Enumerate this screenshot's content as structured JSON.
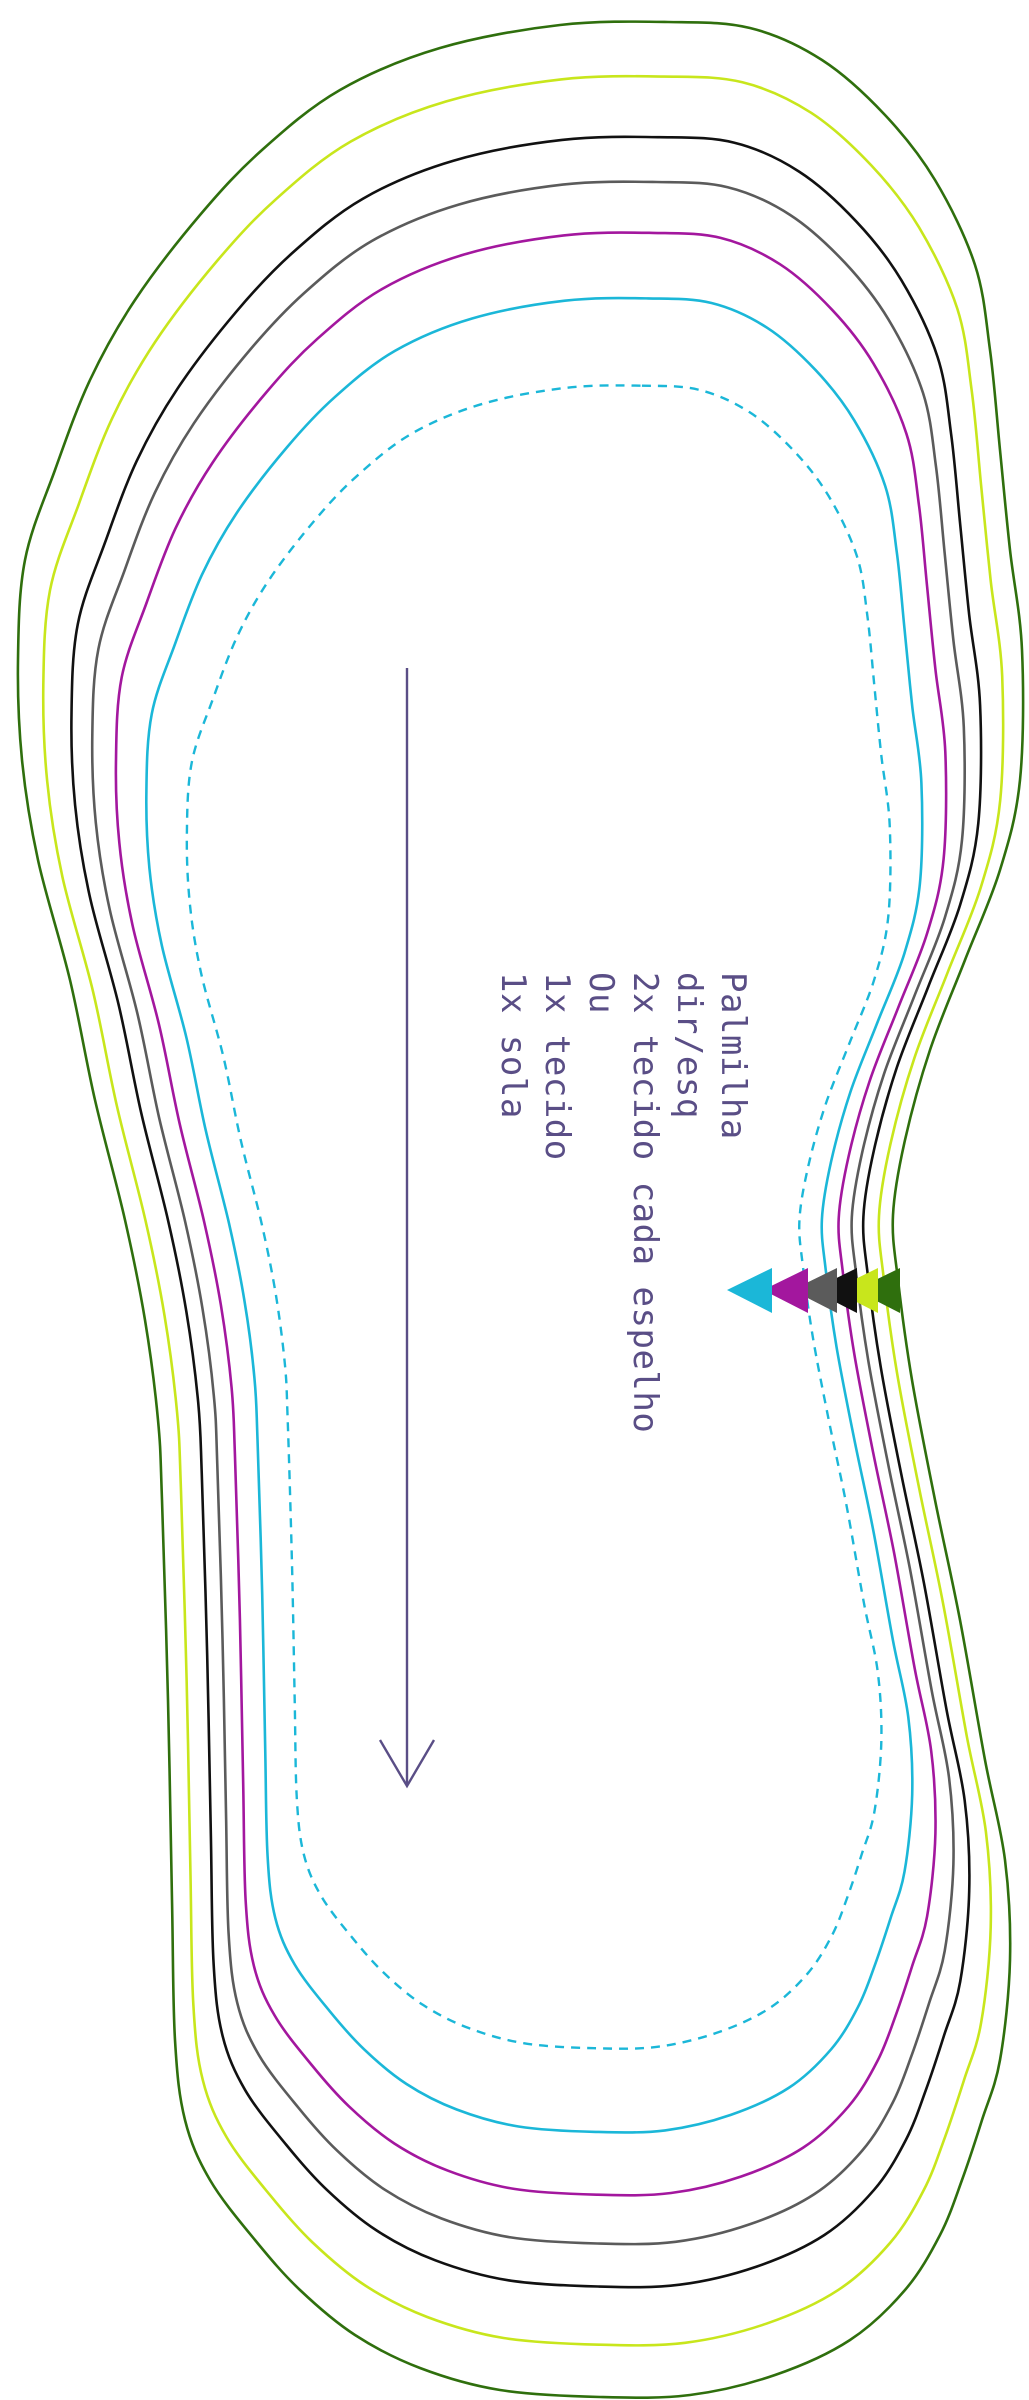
{
  "pattern": {
    "label_lines": [
      "Palmilha",
      "dir/esq",
      "2x tecido cada espelho",
      "Ou",
      "1x tecido",
      "1x sola"
    ],
    "colors": {
      "label": "#5a4e86",
      "grain_arrow": "#5a4e86",
      "outlines": [
        "#2f6f0d",
        "#c8e61c",
        "#111111",
        "#5b5b5b",
        "#a3179e",
        "#1bb7d8"
      ],
      "seam_line": "#1bb7d8"
    },
    "notch_colors": [
      "#2f6f0d",
      "#c8e61c",
      "#111111",
      "#5b5b5b",
      "#a3179e",
      "#1bb7d8"
    ]
  }
}
